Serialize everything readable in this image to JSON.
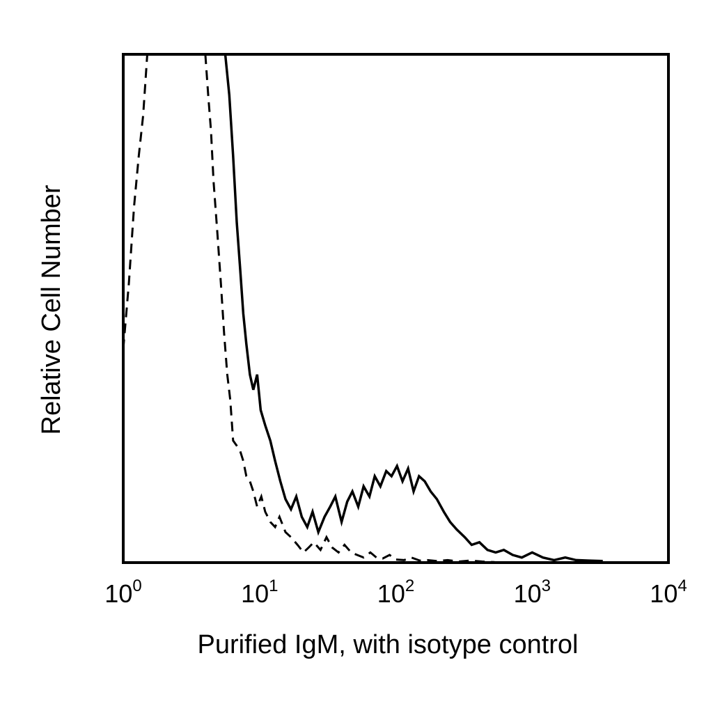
{
  "chart_data": {
    "type": "line",
    "title": "",
    "xlabel": "Purified IgM, with isotype control",
    "ylabel": "Relative Cell Number",
    "x_scale": "log",
    "xlim": [
      1,
      10000
    ],
    "ylim": [
      0,
      100
    ],
    "grid": false,
    "legend": "none",
    "x_ticks": [
      {
        "base": "10",
        "exp": "0",
        "value": 1
      },
      {
        "base": "10",
        "exp": "1",
        "value": 10
      },
      {
        "base": "10",
        "exp": "2",
        "value": 100
      },
      {
        "base": "10",
        "exp": "3",
        "value": 1000
      },
      {
        "base": "10",
        "exp": "4",
        "value": 10000
      }
    ],
    "series": [
      {
        "style": "solid",
        "color": "#000000",
        "x": [
          5.6,
          6.0,
          6.4,
          6.8,
          7.2,
          7.6,
          8.0,
          8.5,
          9.0,
          9.6,
          10.2,
          11.0,
          12.0,
          13.0,
          14.2,
          15.5,
          17.0,
          18.6,
          20.4,
          22.4,
          24.5,
          27.0,
          30.0,
          33.0,
          36.0,
          40.0,
          44.0,
          48.0,
          53.0,
          58.0,
          64.0,
          70.0,
          77.0,
          85.0,
          93.0,
          102.0,
          112.0,
          123.0,
          135.0,
          148.0,
          163.0,
          180.0,
          200.0,
          225.0,
          250.0,
          280.0,
          320.0,
          360.0,
          410.0,
          470.0,
          540.0,
          620.0,
          720.0,
          840.0,
          1000.0,
          1200.0,
          1450.0,
          1750.0,
          2100.0,
          2600.0,
          3300.0
        ],
        "y": [
          100.0,
          92.0,
          80.0,
          67.0,
          58.0,
          49.0,
          43.0,
          37.0,
          34.0,
          37.0,
          30.0,
          27.0,
          24.0,
          20.0,
          16.0,
          12.5,
          10.5,
          13.0,
          9.0,
          7.0,
          10.0,
          6.0,
          9.0,
          11.0,
          13.0,
          8.0,
          12.0,
          14.0,
          11.0,
          15.0,
          13.0,
          17.0,
          15.0,
          18.0,
          17.0,
          19.0,
          16.0,
          18.5,
          14.0,
          17.0,
          16.0,
          14.0,
          12.5,
          10.0,
          8.0,
          6.5,
          5.0,
          3.5,
          4.0,
          2.5,
          2.0,
          2.5,
          1.5,
          1.0,
          2.0,
          1.0,
          0.5,
          1.0,
          0.5,
          0.4,
          0.3
        ]
      },
      {
        "style": "dashed",
        "color": "#000000",
        "x": [
          1.0,
          1.1,
          1.2,
          1.3,
          1.4,
          1.5
        ],
        "y": [
          42.0,
          55.0,
          70.0,
          80.0,
          88.0,
          100.0
        ]
      },
      {
        "style": "dashed",
        "color": "#000000",
        "x": [
          4.0,
          4.2,
          4.4,
          4.6,
          4.9,
          5.2,
          5.5,
          5.8,
          6.1,
          6.4,
          6.8,
          7.2,
          7.6,
          8.0,
          8.5,
          9.0,
          9.6,
          10.3,
          11.0,
          12.0,
          13.0,
          14.0,
          15.5,
          17.0,
          19.0,
          21.0,
          23.0,
          25.0,
          28.0,
          31.0,
          34.0,
          38.0,
          42.0,
          47.0,
          52.0,
          58.0,
          65.0,
          72.0,
          80.0,
          90.0,
          100.0,
          115.0,
          130.0,
          150.0,
          170.0,
          200.0,
          240.0,
          290.0,
          350.0,
          430.0,
          530.0
        ],
        "y": [
          100.0,
          92.0,
          85.0,
          75.0,
          65.0,
          55.0,
          45.0,
          37.0,
          32.0,
          24.0,
          23.0,
          22.0,
          20.0,
          17.0,
          16.0,
          14.0,
          11.0,
          13.0,
          10.0,
          8.0,
          7.0,
          9.0,
          6.0,
          5.0,
          3.5,
          2.0,
          3.0,
          4.0,
          2.5,
          5.0,
          3.0,
          2.0,
          3.5,
          2.0,
          1.5,
          1.0,
          2.0,
          1.0,
          0.8,
          1.5,
          0.6,
          0.5,
          1.0,
          0.4,
          0.5,
          0.3,
          0.5,
          0.2,
          0.4,
          0.2,
          0.1
        ]
      }
    ]
  }
}
